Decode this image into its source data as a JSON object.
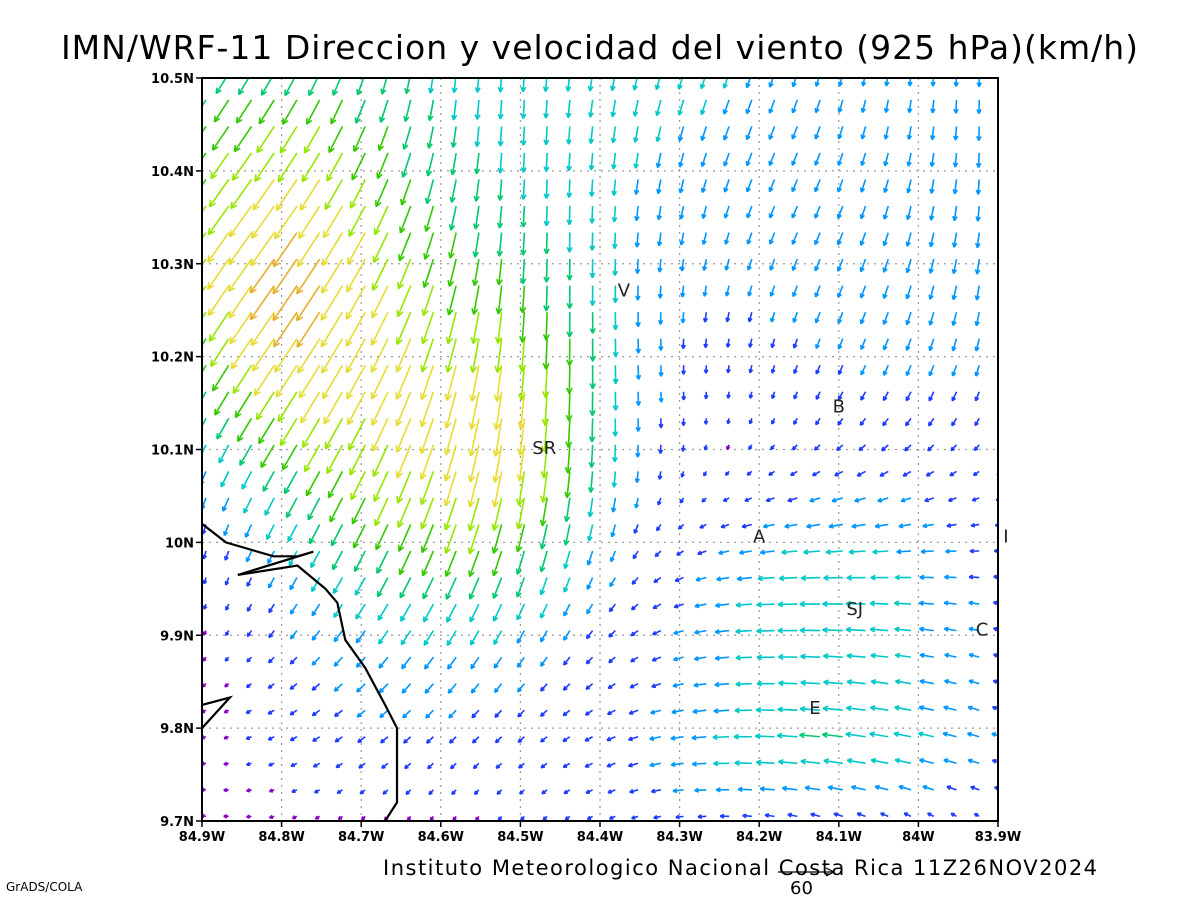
{
  "title": "IMN/WRF-11 Direccion y velocidad del viento (925 hPa)(km/h)",
  "credit": "Instituto Meteorologico Nacional Costa Rica 11Z26NOV2024",
  "software": "GrADS/COLA",
  "reference_vector": {
    "value": "60",
    "units": "km/h"
  },
  "axes": {
    "lon_ticks": [
      "84.9W",
      "84.8W",
      "84.7W",
      "84.6W",
      "84.5W",
      "84.4W",
      "84.3W",
      "84.2W",
      "84.1W",
      "84W",
      "83.9W"
    ],
    "lat_ticks": [
      "10.5N",
      "10.4N",
      "10.3N",
      "10.2N",
      "10.1N",
      "10N",
      "9.9N",
      "9.8N",
      "9.7N"
    ],
    "lon_range": [
      -84.9,
      -83.9
    ],
    "lat_range": [
      9.7,
      10.5
    ],
    "grid": "dotted"
  },
  "colors": {
    "speed_scale": [
      "#8a00c8",
      "#1e3cff",
      "#0096ff",
      "#00c8c8",
      "#00c86e",
      "#32c800",
      "#96e600",
      "#e6dc32",
      "#e6af2d",
      "#f03c3c"
    ],
    "coastline": "#000000"
  },
  "places": [
    {
      "label": "V",
      "lon": -84.37,
      "lat": 10.265
    },
    {
      "label": "SR",
      "lon": -84.47,
      "lat": 10.095
    },
    {
      "label": "B",
      "lon": -84.1,
      "lat": 10.14
    },
    {
      "label": "A",
      "lon": -84.2,
      "lat": 10.0
    },
    {
      "label": "SJ",
      "lon": -84.08,
      "lat": 9.922
    },
    {
      "label": "C",
      "lon": -83.92,
      "lat": 9.9
    },
    {
      "label": "I",
      "lon": -83.89,
      "lat": 10.0
    },
    {
      "label": "E",
      "lon": -84.13,
      "lat": 9.815
    }
  ],
  "coastline": [
    [
      -84.9,
      10.02
    ],
    [
      -84.87,
      10.0
    ],
    [
      -84.81,
      9.985
    ],
    [
      -84.78,
      9.985
    ],
    [
      -84.76,
      9.99
    ],
    [
      -84.855,
      9.965
    ],
    [
      -84.78,
      9.975
    ],
    [
      -84.745,
      9.95
    ],
    [
      -84.73,
      9.935
    ],
    [
      -84.72,
      9.895
    ],
    [
      -84.695,
      9.865
    ],
    [
      -84.67,
      9.825
    ],
    [
      -84.655,
      9.8
    ],
    [
      -84.655,
      9.72
    ],
    [
      -84.67,
      9.7
    ]
  ],
  "coastline2": [
    [
      -84.9,
      9.825
    ],
    [
      -84.865,
      9.833
    ],
    [
      -84.9,
      9.8
    ]
  ]
}
